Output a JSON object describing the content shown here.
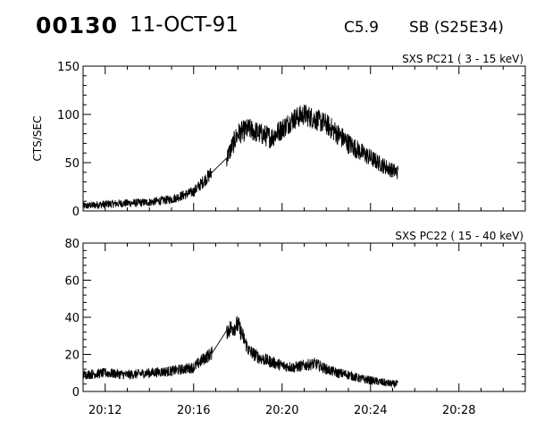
{
  "header": {
    "event_number": "00130",
    "date": "11-OCT-91",
    "goes_class": "C5.9",
    "site": "SB (S25E34)"
  },
  "colors": {
    "line": "#000000",
    "axis": "#000000",
    "background": "#ffffff"
  },
  "chart_data": [
    {
      "type": "line",
      "title": "SXS PC21  (  3 - 15 keV)",
      "ylabel": "CTS/SEC",
      "xlabel": "",
      "ylim": [
        0,
        150
      ],
      "yticks": [
        0,
        50,
        100,
        150
      ],
      "xlim": [
        "20:11",
        "20:31"
      ],
      "xticks": [
        "20:12",
        "20:16",
        "20:20",
        "20:24",
        "20:28"
      ],
      "show_xtick_labels": false,
      "grid": false,
      "series": [
        {
          "x": [
            "20:11",
            "20:12",
            "20:13",
            "20:14",
            "20:15",
            "20:16",
            "20:16:30",
            "20:17",
            "20:17:30",
            "20:18",
            "20:18:30",
            "20:19",
            "20:19:30",
            "20:20",
            "20:20:30",
            "20:21",
            "20:21:30",
            "20:22",
            "20:22:30",
            "20:23",
            "20:23:30",
            "20:24",
            "20:24:30",
            "20:25",
            "20:25:15"
          ],
          "values": [
            5,
            7,
            8,
            9,
            12,
            20,
            32,
            44,
            55,
            80,
            85,
            80,
            76,
            85,
            95,
            100,
            95,
            90,
            80,
            70,
            62,
            55,
            48,
            42,
            40
          ],
          "noise": 8
        }
      ]
    },
    {
      "type": "line",
      "title": "SXS PC22  ( 15 - 40 keV)",
      "ylabel": "",
      "xlabel": "",
      "ylim": [
        0,
        80
      ],
      "yticks": [
        0,
        20,
        40,
        60,
        80
      ],
      "xlim": [
        "20:11",
        "20:31"
      ],
      "xticks": [
        "20:12",
        "20:16",
        "20:20",
        "20:24",
        "20:28"
      ],
      "show_xtick_labels": true,
      "grid": false,
      "series": [
        {
          "x": [
            "20:11",
            "20:12",
            "20:13",
            "20:14",
            "20:15",
            "20:16",
            "20:16:30",
            "20:17",
            "20:17:30",
            "20:18",
            "20:18:30",
            "20:19",
            "20:19:30",
            "20:20",
            "20:20:30",
            "20:21",
            "20:21:30",
            "20:22",
            "20:22:30",
            "20:23",
            "20:23:30",
            "20:24",
            "20:24:30",
            "20:25",
            "20:25:15"
          ],
          "values": [
            9,
            10,
            9,
            10,
            11,
            13,
            18,
            22,
            33,
            36,
            22,
            18,
            16,
            14,
            13,
            14,
            15,
            12,
            10,
            9,
            7,
            6,
            5,
            4,
            4
          ],
          "noise": 4
        }
      ]
    }
  ]
}
